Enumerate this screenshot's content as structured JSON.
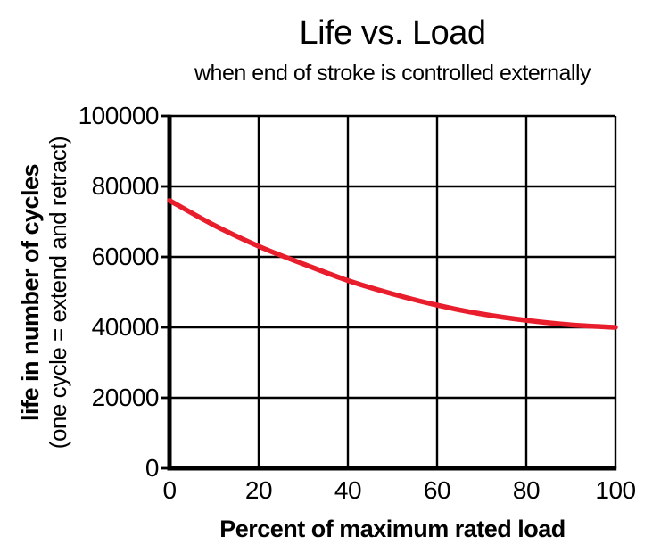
{
  "page": {
    "background": "#ffffff",
    "text_color": "#000000"
  },
  "chart_data": {
    "type": "line",
    "title": "Life vs. Load",
    "subtitle": "when end of stroke is controlled externally",
    "xlabel": "Percent of maximum rated load",
    "ylabel": "life in number of cycles",
    "ylabel_note": "(one cycle = extend and retract)",
    "xlim": [
      0,
      100
    ],
    "ylim": [
      0,
      100000
    ],
    "xticks": [
      0,
      20,
      40,
      60,
      80,
      100
    ],
    "yticks": [
      0,
      20000,
      40000,
      60000,
      80000,
      100000
    ],
    "grid": true,
    "legend": false,
    "grid_color": "#000000",
    "axis_color": "#000000",
    "series": [
      {
        "name": "life",
        "color": "#e81e2c",
        "points": [
          [
            0,
            76000
          ],
          [
            10,
            69000
          ],
          [
            20,
            63000
          ],
          [
            30,
            58000
          ],
          [
            40,
            53300
          ],
          [
            50,
            49500
          ],
          [
            60,
            46300
          ],
          [
            70,
            43800
          ],
          [
            80,
            42000
          ],
          [
            90,
            40700
          ],
          [
            100,
            40000
          ]
        ]
      }
    ]
  }
}
